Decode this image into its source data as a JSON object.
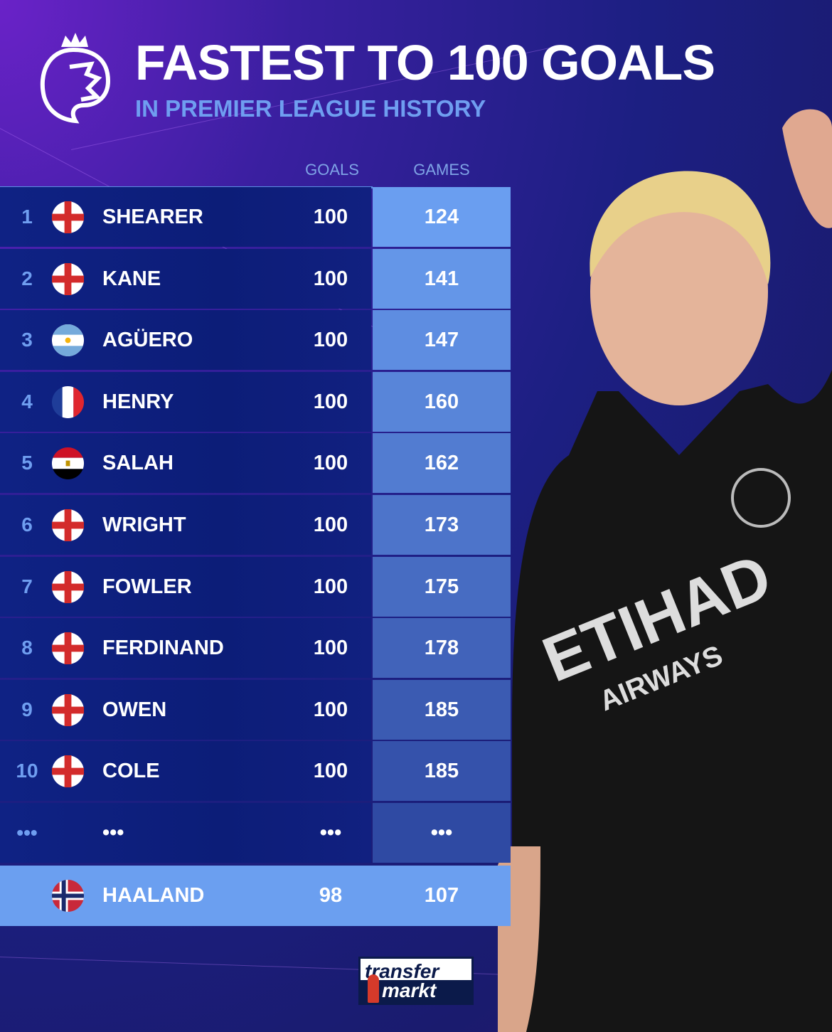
{
  "header": {
    "title": "FASTEST TO 100 GOALS",
    "subtitle": "IN PREMIER LEAGUE HISTORY",
    "logo": "premier-league-lion-logo"
  },
  "columns": {
    "goals": "GOALS",
    "games": "GAMES"
  },
  "rows": [
    {
      "rank": "1",
      "flag": "england",
      "name": "SHEARER",
      "goals": "100",
      "games": "124"
    },
    {
      "rank": "2",
      "flag": "england",
      "name": "KANE",
      "goals": "100",
      "games": "141"
    },
    {
      "rank": "3",
      "flag": "argentina",
      "name": "AGÜERO",
      "goals": "100",
      "games": "147"
    },
    {
      "rank": "4",
      "flag": "france",
      "name": "HENRY",
      "goals": "100",
      "games": "160"
    },
    {
      "rank": "5",
      "flag": "egypt",
      "name": "SALAH",
      "goals": "100",
      "games": "162"
    },
    {
      "rank": "6",
      "flag": "england",
      "name": "WRIGHT",
      "goals": "100",
      "games": "173"
    },
    {
      "rank": "7",
      "flag": "england",
      "name": "FOWLER",
      "goals": "100",
      "games": "175"
    },
    {
      "rank": "8",
      "flag": "england",
      "name": "FERDINAND",
      "goals": "100",
      "games": "178"
    },
    {
      "rank": "9",
      "flag": "england",
      "name": "OWEN",
      "goals": "100",
      "games": "185"
    },
    {
      "rank": "10",
      "flag": "england",
      "name": "COLE",
      "goals": "100",
      "games": "185"
    },
    {
      "rank": "•••",
      "flag": "",
      "name": "•••",
      "goals": "•••",
      "games": "•••"
    }
  ],
  "highlight": {
    "flag": "norway",
    "name": "HAALAND",
    "goals": "98",
    "games": "107"
  },
  "branding": {
    "line1": "transfer",
    "line2": "markt"
  },
  "player_shirt": {
    "sponsor1": "ETIHAD",
    "sponsor2": "AIRWAYS"
  },
  "colors": {
    "games_top": "#6a9ef0",
    "games_bottom": "#2f4aa3",
    "row_bg": "#0d1f7a",
    "highlight": "#6b9ff0",
    "accent": "#6f9ef0"
  }
}
